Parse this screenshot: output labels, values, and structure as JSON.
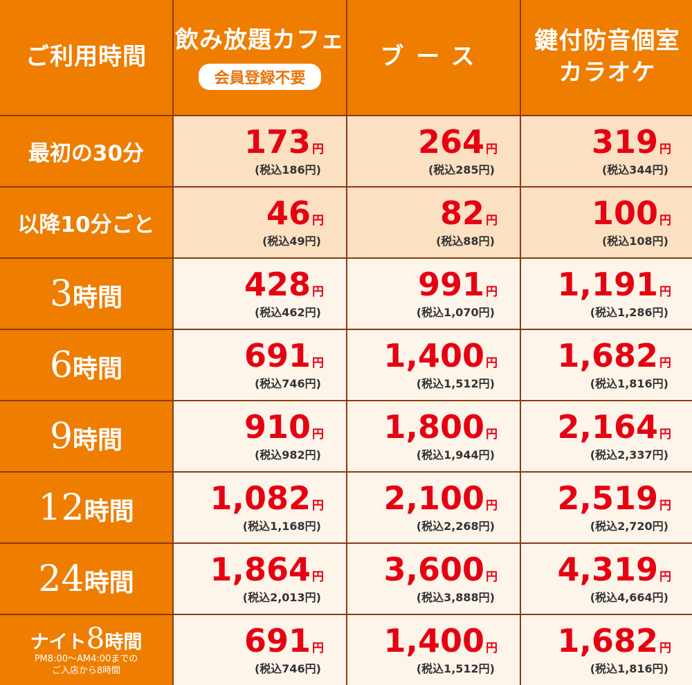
{
  "header": {
    "col0": "ご利用時間",
    "col1": "飲み放題カフェ",
    "col1_badge": "会員登録不要",
    "col2": "ブース",
    "col3_line1": "鍵付防音個室",
    "col3_line2": "カラオケ"
  },
  "rows": [
    {
      "label": "最初の30分",
      "prices": [
        {
          "main": "173",
          "yen": "円",
          "tax": "(税込186円)"
        },
        {
          "main": "264",
          "yen": "円",
          "tax": "(税込285円)"
        },
        {
          "main": "319",
          "yen": "円",
          "tax": "(税込344円)"
        }
      ]
    },
    {
      "label": "以降10分ごと",
      "prices": [
        {
          "main": "46",
          "yen": "円",
          "tax": "(税込49円)"
        },
        {
          "main": "82",
          "yen": "円",
          "tax": "(税込88円)"
        },
        {
          "main": "100",
          "yen": "円",
          "tax": "(税込108円)"
        }
      ]
    },
    {
      "num": "3",
      "unit": "時間",
      "prices": [
        {
          "main": "428",
          "yen": "円",
          "tax": "(税込462円)"
        },
        {
          "main": "991",
          "yen": "円",
          "tax": "(税込1,070円)"
        },
        {
          "main": "1,191",
          "yen": "円",
          "tax": "(税込1,286円)"
        }
      ]
    },
    {
      "num": "6",
      "unit": "時間",
      "prices": [
        {
          "main": "691",
          "yen": "円",
          "tax": "(税込746円)"
        },
        {
          "main": "1,400",
          "yen": "円",
          "tax": "(税込1,512円)"
        },
        {
          "main": "1,682",
          "yen": "円",
          "tax": "(税込1,816円)"
        }
      ]
    },
    {
      "num": "9",
      "unit": "時間",
      "prices": [
        {
          "main": "910",
          "yen": "円",
          "tax": "(税込982円)"
        },
        {
          "main": "1,800",
          "yen": "円",
          "tax": "(税込1,944円)"
        },
        {
          "main": "2,164",
          "yen": "円",
          "tax": "(税込2,337円)"
        }
      ]
    },
    {
      "num": "12",
      "unit": "時間",
      "prices": [
        {
          "main": "1,082",
          "yen": "円",
          "tax": "(税込1,168円)"
        },
        {
          "main": "2,100",
          "yen": "円",
          "tax": "(税込2,268円)"
        },
        {
          "main": "2,519",
          "yen": "円",
          "tax": "(税込2,720円)"
        }
      ]
    },
    {
      "num": "24",
      "unit": "時間",
      "prices": [
        {
          "main": "1,864",
          "yen": "円",
          "tax": "(税込2,013円)"
        },
        {
          "main": "3,600",
          "yen": "円",
          "tax": "(税込3,888円)"
        },
        {
          "main": "4,319",
          "yen": "円",
          "tax": "(税込4,664円)"
        }
      ]
    },
    {
      "night_prefix": "ナイト",
      "num": "8",
      "unit": "時間",
      "note1": "PM8:00～AM4:00までの",
      "note2": "ご入店から8時間",
      "prices": [
        {
          "main": "691",
          "yen": "円",
          "tax": "(税込746円)"
        },
        {
          "main": "1,400",
          "yen": "円",
          "tax": "(税込1,512円)"
        },
        {
          "main": "1,682",
          "yen": "円",
          "tax": "(税込1,816円)"
        }
      ]
    }
  ],
  "colors": {
    "header_orange": "#ee7d00",
    "price_red": "#e60012",
    "row_peach": "#fbe0c2",
    "row_cream": "#fdf5ea"
  }
}
